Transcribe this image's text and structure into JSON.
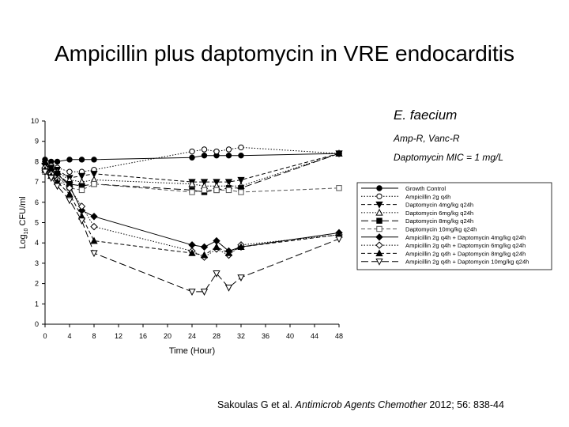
{
  "slide": {
    "title": "Ampicillin plus daptomycin in VRE endocarditis",
    "organism": "E. faecium",
    "resistance": "Amp-R, Vanc-R",
    "mic": "Daptomycin MIC = 1 mg/L",
    "citation": {
      "authors": "Sakoulas G et al. ",
      "journal": "Antimicrob Agents Chemother",
      "details": " 2012; 56: 838-44"
    }
  },
  "chart_data": {
    "type": "line",
    "xlabel": "Time (Hour)",
    "ylabel": "Log10 CFU/ml",
    "xlim": [
      0,
      48
    ],
    "ylim": [
      0,
      10
    ],
    "xticks": [
      0,
      4,
      8,
      12,
      16,
      20,
      24,
      28,
      32,
      36,
      40,
      44,
      48
    ],
    "yticks": [
      0,
      1,
      2,
      3,
      4,
      5,
      6,
      7,
      8,
      9,
      10
    ],
    "grid": false,
    "legend_position": "right",
    "series": [
      {
        "name": "Growth Control",
        "marker": "circle-filled",
        "dash": "solid",
        "color": "#000000",
        "points": [
          [
            0,
            8.1
          ],
          [
            1,
            8.0
          ],
          [
            2,
            8.0
          ],
          [
            4,
            8.1
          ],
          [
            6,
            8.1
          ],
          [
            8,
            8.1
          ],
          [
            24,
            8.2
          ],
          [
            26,
            8.3
          ],
          [
            28,
            8.3
          ],
          [
            30,
            8.3
          ],
          [
            32,
            8.3
          ],
          [
            48,
            8.4
          ]
        ]
      },
      {
        "name": "Ampicillin 2g q4h",
        "marker": "circle-open",
        "dash": "dotted",
        "color": "#000000",
        "points": [
          [
            0,
            7.9
          ],
          [
            1,
            7.8
          ],
          [
            2,
            7.7
          ],
          [
            4,
            7.5
          ],
          [
            6,
            7.5
          ],
          [
            8,
            7.6
          ],
          [
            24,
            8.5
          ],
          [
            26,
            8.6
          ],
          [
            28,
            8.5
          ],
          [
            30,
            8.6
          ],
          [
            32,
            8.7
          ],
          [
            48,
            8.4
          ]
        ]
      },
      {
        "name": "Daptomycin 4mg/kg q24h",
        "marker": "triangle-down-filled",
        "dash": "dashed",
        "color": "#000000",
        "points": [
          [
            0,
            7.8
          ],
          [
            1,
            7.7
          ],
          [
            2,
            7.6
          ],
          [
            4,
            7.2
          ],
          [
            6,
            7.3
          ],
          [
            8,
            7.4
          ],
          [
            24,
            7.0
          ],
          [
            26,
            7.0
          ],
          [
            28,
            7.0
          ],
          [
            30,
            7.0
          ],
          [
            32,
            7.1
          ],
          [
            48,
            8.4
          ]
        ]
      },
      {
        "name": "Daptomycin 6mg/kg q24h",
        "marker": "triangle-up-open",
        "dash": "dotted",
        "color": "#000000",
        "points": [
          [
            0,
            7.7
          ],
          [
            1,
            7.6
          ],
          [
            2,
            7.5
          ],
          [
            4,
            7.1
          ],
          [
            6,
            7.0
          ],
          [
            8,
            7.1
          ],
          [
            24,
            6.9
          ],
          [
            26,
            6.8
          ],
          [
            28,
            6.8
          ],
          [
            30,
            6.8
          ],
          [
            32,
            6.8
          ],
          [
            48,
            8.4
          ]
        ]
      },
      {
        "name": "Daptomycin 8mg/kg q24h",
        "marker": "square-filled",
        "dash": "longdash",
        "color": "#000000",
        "points": [
          [
            0,
            7.6
          ],
          [
            1,
            7.5
          ],
          [
            2,
            7.4
          ],
          [
            4,
            6.9
          ],
          [
            6,
            6.8
          ],
          [
            8,
            6.9
          ],
          [
            24,
            6.6
          ],
          [
            26,
            6.5
          ],
          [
            28,
            6.6
          ],
          [
            30,
            6.7
          ],
          [
            32,
            6.7
          ],
          [
            48,
            8.4
          ]
        ]
      },
      {
        "name": "Daptomycin 10mg/kg q24h",
        "marker": "square-open",
        "dash": "dashed",
        "color": "#555555",
        "points": [
          [
            0,
            7.5
          ],
          [
            1,
            7.4
          ],
          [
            2,
            7.3
          ],
          [
            4,
            6.7
          ],
          [
            6,
            6.6
          ],
          [
            8,
            6.9
          ],
          [
            24,
            6.5
          ],
          [
            26,
            6.6
          ],
          [
            28,
            6.6
          ],
          [
            30,
            6.6
          ],
          [
            32,
            6.5
          ],
          [
            48,
            6.7
          ]
        ]
      },
      {
        "name": "Ampicillin 2g q4h + Daptomycin 4mg/kg q24h",
        "marker": "diamond-filled",
        "dash": "solid",
        "color": "#000000",
        "points": [
          [
            0,
            7.9
          ],
          [
            1,
            7.6
          ],
          [
            2,
            7.4
          ],
          [
            4,
            6.8
          ],
          [
            6,
            5.6
          ],
          [
            8,
            5.3
          ],
          [
            24,
            3.9
          ],
          [
            26,
            3.8
          ],
          [
            28,
            4.1
          ],
          [
            30,
            3.6
          ],
          [
            32,
            3.8
          ],
          [
            48,
            4.5
          ]
        ]
      },
      {
        "name": "Ampicillin 2g q4h + Daptomycin 6mg/kg q24h",
        "marker": "diamond-open",
        "dash": "dotted",
        "color": "#000000",
        "points": [
          [
            0,
            7.7
          ],
          [
            1,
            7.4
          ],
          [
            2,
            7.1
          ],
          [
            4,
            6.7
          ],
          [
            6,
            5.8
          ],
          [
            8,
            4.8
          ],
          [
            24,
            3.6
          ],
          [
            26,
            3.3
          ],
          [
            28,
            3.7
          ],
          [
            30,
            3.4
          ],
          [
            32,
            3.9
          ],
          [
            48,
            4.4
          ]
        ]
      },
      {
        "name": "Ampicillin 2g q4h + Daptomycin 8mg/kg q24h",
        "marker": "triangle-up-filled",
        "dash": "dashed",
        "color": "#000000",
        "points": [
          [
            0,
            7.6
          ],
          [
            1,
            7.3
          ],
          [
            2,
            7.0
          ],
          [
            4,
            6.4
          ],
          [
            6,
            5.3
          ],
          [
            8,
            4.1
          ],
          [
            24,
            3.5
          ],
          [
            26,
            3.4
          ],
          [
            28,
            3.8
          ],
          [
            30,
            3.5
          ],
          [
            32,
            3.8
          ],
          [
            48,
            4.4
          ]
        ]
      },
      {
        "name": "Ampicillin 2g q4h + Daptomycin 10mg/kg q24h",
        "marker": "triangle-down-open",
        "dash": "longdash",
        "color": "#000000",
        "points": [
          [
            0,
            7.5
          ],
          [
            1,
            7.2
          ],
          [
            2,
            6.8
          ],
          [
            4,
            6.1
          ],
          [
            6,
            5.1
          ],
          [
            8,
            3.5
          ],
          [
            24,
            1.6
          ],
          [
            26,
            1.6
          ],
          [
            28,
            2.5
          ],
          [
            30,
            1.8
          ],
          [
            32,
            2.3
          ],
          [
            48,
            4.2
          ]
        ]
      }
    ]
  }
}
